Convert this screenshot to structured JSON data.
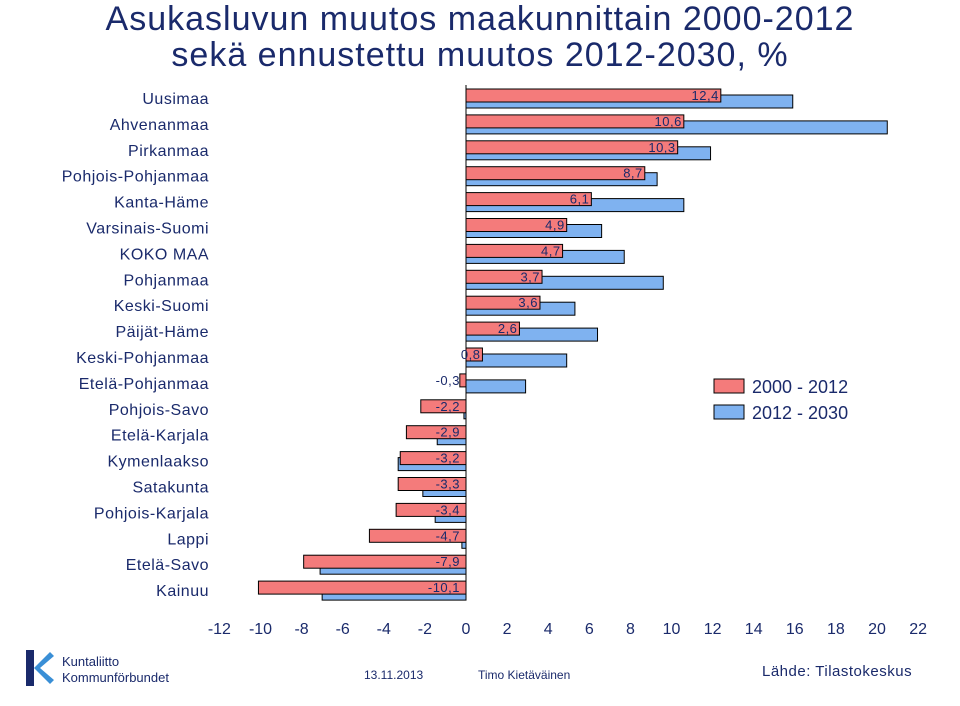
{
  "title_line1": "Asukasluvun muutos maakunnittain 2000-2012",
  "title_line2": "sekä ennustettu muutos 2012-2030, %",
  "chart_data": {
    "type": "bar",
    "orientation": "horizontal",
    "categories": [
      "Uusimaa",
      "Ahvenanmaa",
      "Pirkanmaa",
      "Pohjois-Pohjanmaa",
      "Kanta-Häme",
      "Varsinais-Suomi",
      "KOKO MAA",
      "Pohjanmaa",
      "Keski-Suomi",
      "Päijät-Häme",
      "Keski-Pohjanmaa",
      "Etelä-Pohjanmaa",
      "Pohjois-Savo",
      "Etelä-Karjala",
      "Kymenlaakso",
      "Satakunta",
      "Pohjois-Karjala",
      "Lappi",
      "Etelä-Savo",
      "Kainuu"
    ],
    "series": [
      {
        "name": "2000 - 2012",
        "color": "#f47b7b",
        "values": [
          12.4,
          10.6,
          10.3,
          8.7,
          6.1,
          4.9,
          4.7,
          3.7,
          3.6,
          2.6,
          0.8,
          -0.3,
          -2.2,
          -2.9,
          -3.2,
          -3.3,
          -3.4,
          -4.7,
          -7.9,
          -10.1
        ],
        "labels": [
          "12,4",
          "10,6",
          "10,3",
          "8,7",
          "6,1",
          "4,9",
          "4,7",
          "3,7",
          "3,6",
          "2,6",
          "0,8",
          "-0,3",
          "-2,2",
          "-2,9",
          "-3,2",
          "-3,3",
          "-3,4",
          "-4,7",
          "-7,9",
          "-10,1"
        ]
      },
      {
        "name": "2012 - 2030",
        "color": "#7fb2f0",
        "values": [
          15.9,
          20.5,
          11.9,
          9.3,
          10.6,
          6.6,
          7.7,
          9.6,
          5.3,
          6.4,
          4.9,
          2.9,
          -0.1,
          -1.4,
          -3.3,
          -2.1,
          -1.5,
          -0.2,
          -7.1,
          -7.0
        ]
      }
    ],
    "xlim": [
      -12,
      22
    ],
    "xticks": [
      "-12",
      "-10",
      "-8",
      "-6",
      "-4",
      "-2",
      "0",
      "2",
      "4",
      "6",
      "8",
      "10",
      "12",
      "14",
      "16",
      "18",
      "20",
      "22"
    ],
    "legend_position": "right"
  },
  "footer": {
    "logo_line1": "Kuntaliitto",
    "logo_line2": "Kommunförbundet",
    "date": "13.11.2013",
    "author": "Timo Kietäväinen",
    "source": "Lähde: Tilastokeskus"
  }
}
